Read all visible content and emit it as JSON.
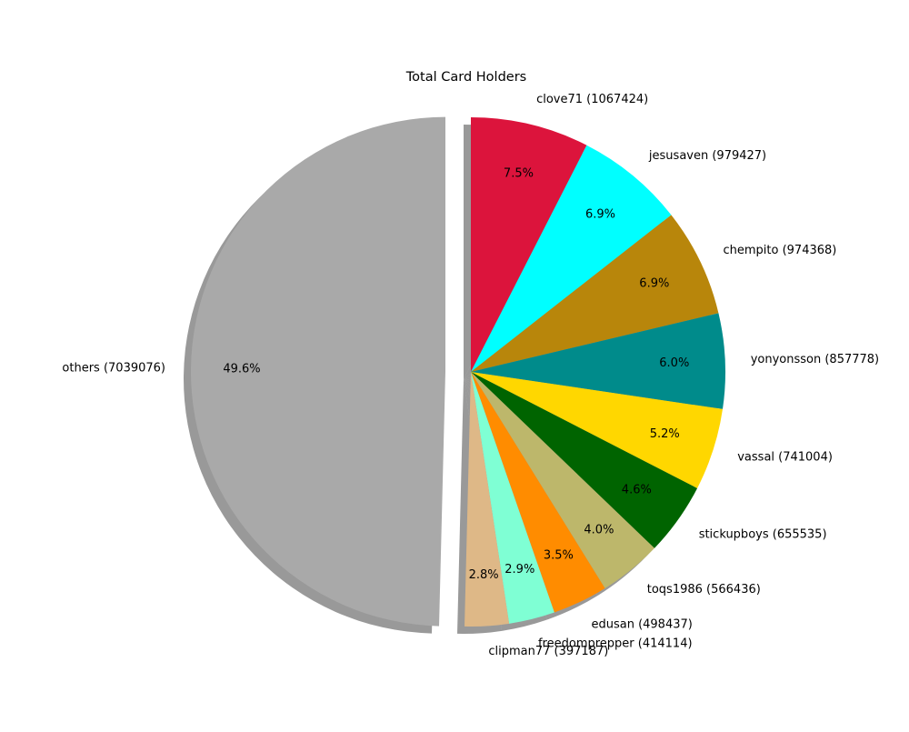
{
  "chart_data": {
    "type": "pie",
    "title": "Total Card Holders",
    "slices": [
      {
        "label": "clove71 (1067424)",
        "value": 1067424,
        "pct": "7.5%",
        "color": "#DC143C"
      },
      {
        "label": "jesusaven (979427)",
        "value": 979427,
        "pct": "6.9%",
        "color": "#00FFFF"
      },
      {
        "label": "chempito (974368)",
        "value": 974368,
        "pct": "6.9%",
        "color": "#B8860B"
      },
      {
        "label": "yonyonsson (857778)",
        "value": 857778,
        "pct": "6.0%",
        "color": "#008B8B"
      },
      {
        "label": "vassal (741004)",
        "value": 741004,
        "pct": "5.2%",
        "color": "#FFD700"
      },
      {
        "label": "stickupboys (655535)",
        "value": 655535,
        "pct": "4.6%",
        "color": "#006400"
      },
      {
        "label": "toqs1986 (566436)",
        "value": 566436,
        "pct": "4.0%",
        "color": "#BDB76B"
      },
      {
        "label": "edusan (498437)",
        "value": 498437,
        "pct": "3.5%",
        "color": "#FF8C00"
      },
      {
        "label": "freedomprepper (414114)",
        "value": 414114,
        "pct": "2.9%",
        "color": "#7FFFD4"
      },
      {
        "label": "clipman77 (397187)",
        "value": 397187,
        "pct": "2.8%",
        "color": "#DEB887"
      },
      {
        "label": "others (7039076)",
        "value": 7039076,
        "pct": "49.6%",
        "color": "#A9A9A9",
        "exploded": true
      }
    ],
    "start_angle": "top (12 o'clock), clockwise",
    "shadow": true
  }
}
